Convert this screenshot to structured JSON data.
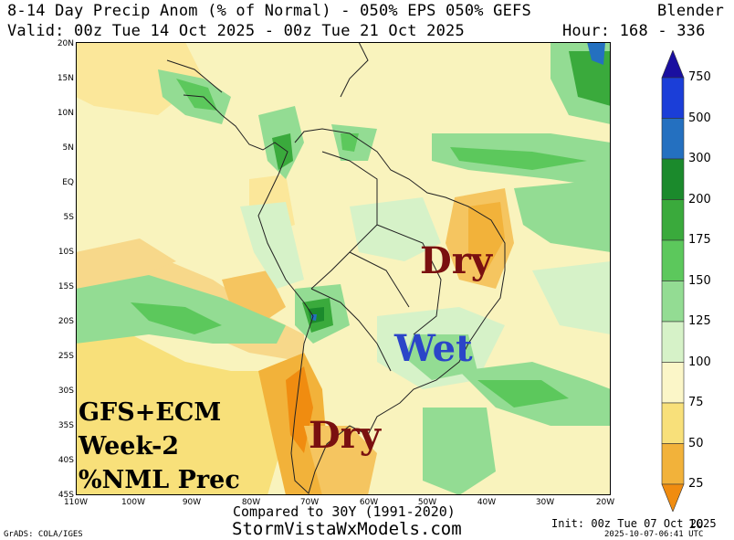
{
  "header": {
    "line1_left": "8-14 Day Precip Anom (% of Normal) - 050% EPS 050% GEFS",
    "line1_right": "Blender",
    "line2_left": "Valid: 00z Tue 14 Oct 2025 - 00z Tue 21 Oct 2025",
    "line2_right": "Hour: 168 - 336"
  },
  "axes": {
    "lat_labels": [
      "20N",
      "15N",
      "10N",
      "5N",
      "EQ",
      "5S",
      "10S",
      "15S",
      "20S",
      "25S",
      "30S",
      "35S",
      "40S",
      "45S"
    ],
    "lon_labels": [
      "110W",
      "100W",
      "90W",
      "80W",
      "70W",
      "60W",
      "50W",
      "40W",
      "30W",
      "20W"
    ]
  },
  "colorbar": {
    "levels": [
      "750",
      "500",
      "300",
      "200",
      "175",
      "150",
      "125",
      "100",
      "75",
      "50",
      "25",
      "10"
    ],
    "colors": [
      "#1a0fa0",
      "#1b3ed8",
      "#2470c0",
      "#1b8a2c",
      "#3aaa3c",
      "#5cc85c",
      "#93dc93",
      "#d6f2c8",
      "#fbf6c8",
      "#f8e07a",
      "#f2b23a",
      "#f08c10"
    ]
  },
  "annotations": {
    "dry_north": "Dry",
    "wet": "Wet",
    "dry_south": "Dry",
    "model_line1": "GFS+ECM",
    "model_line2": "Week-2",
    "model_line3": "%NML Prec"
  },
  "footer": {
    "compared": "Compared to 30Y (1991-2020)",
    "site": "StormVistaWxModels.com",
    "init": "Init: 00z Tue 07 Oct 2025",
    "timestamp": "2025-10-07-06:41 UTC",
    "grads": "GrADS: COLA/IGES"
  },
  "palette": {
    "dry_text": "#7a1010",
    "wet_text": "#2b45c8"
  }
}
